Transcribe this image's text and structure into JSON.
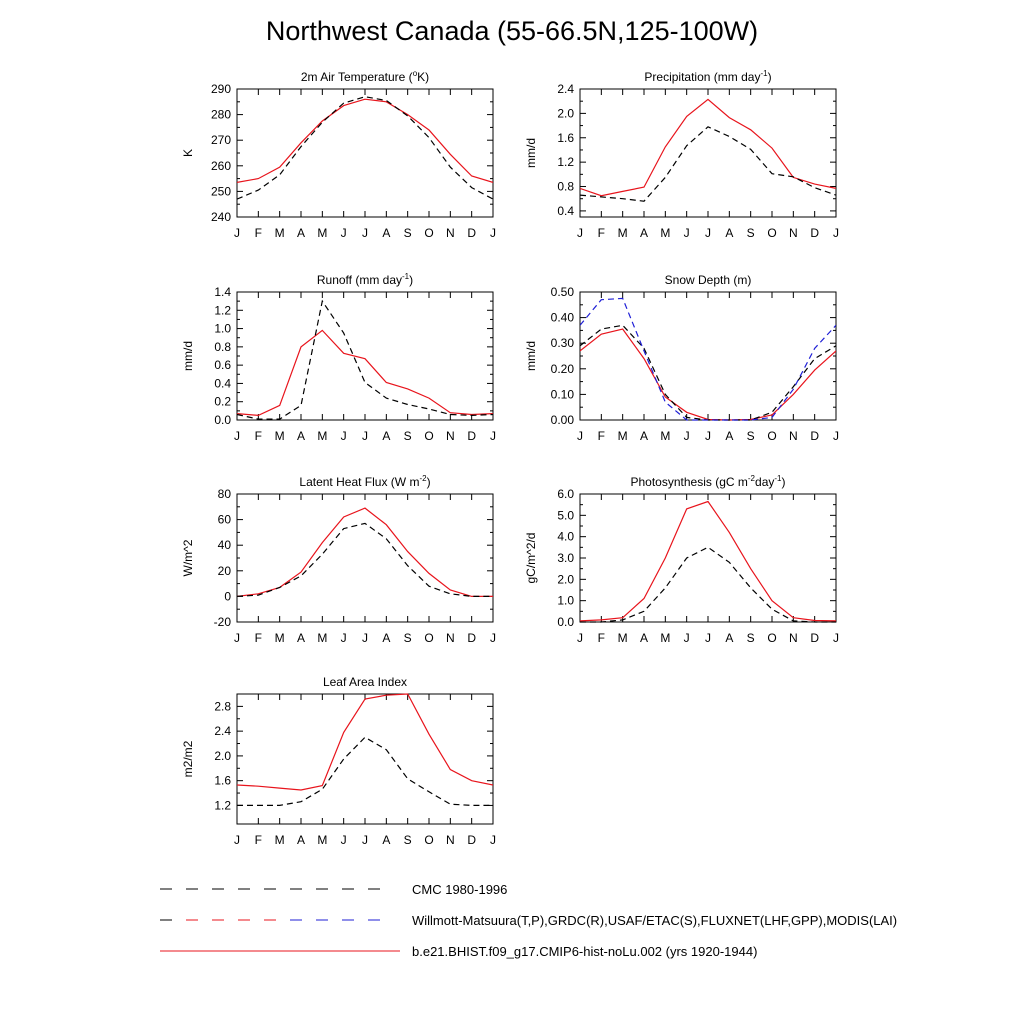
{
  "page": {
    "title": "Northwest Canada (55-66.5N,125-100W)"
  },
  "months": [
    "J",
    "F",
    "M",
    "A",
    "M",
    "J",
    "J",
    "A",
    "S",
    "O",
    "N",
    "D",
    "J"
  ],
  "colors": {
    "model": "#e8141c",
    "obs": "#000000",
    "obs_alt": "#1f1fd6"
  },
  "legend": [
    {
      "label": "CMC 1980-1996",
      "dash": "obs",
      "colors": [
        "#000000"
      ]
    },
    {
      "label": "Willmott-Matsuura(T,P),GRDC(R),USAF/ETAC(S),FLUXNET(LHF,GPP),MODIS(LAI)",
      "dash": "obs",
      "colors": [
        "#000000",
        "#e8141c",
        "#1f1fd6"
      ]
    },
    {
      "label": "b.e21.BHIST.f09_g17.CMIP6-hist-noLu.002 (yrs 1920-1944)",
      "dash": "solid",
      "colors": [
        "#e8141c"
      ]
    }
  ],
  "chart_data": [
    {
      "id": "temp",
      "type": "line",
      "title": "2m Air Temperature (",
      "title_sup": "o",
      "title_post": "K)",
      "ylabel": "K",
      "ylim": [
        240,
        290
      ],
      "yticks": [
        240,
        250,
        260,
        270,
        280,
        290
      ],
      "ytick_labels": [
        "240",
        "250",
        "260",
        "270",
        "280",
        "290"
      ],
      "xticklabels": [
        "J",
        "F",
        "M",
        "A",
        "M",
        "J",
        "J",
        "A",
        "S",
        "O",
        "N",
        "D",
        "J"
      ],
      "series": [
        {
          "style": "solid",
          "color": "#e8141c",
          "values": [
            253.5,
            255,
            259.5,
            269,
            277.5,
            283.5,
            286,
            285,
            280,
            274,
            264.5,
            256,
            253.5
          ]
        },
        {
          "style": "dash",
          "color": "#000000",
          "values": [
            247,
            250.5,
            256.5,
            267.5,
            277,
            284.5,
            287,
            285.5,
            279.5,
            271,
            259.5,
            251.5,
            247
          ]
        }
      ]
    },
    {
      "id": "precip",
      "type": "line",
      "title": "Precipitation (mm day",
      "title_sup": "-1",
      "title_post": ")",
      "ylabel": "mm/d",
      "ylim": [
        0.3,
        2.4
      ],
      "yticks": [
        0.4,
        0.8,
        1.2,
        1.6,
        2.0,
        2.4
      ],
      "ytick_labels": [
        "0.4",
        "0.8",
        "1.2",
        "1.6",
        "2.0",
        "2.4"
      ],
      "xticklabels": [
        "J",
        "F",
        "M",
        "A",
        "M",
        "J",
        "J",
        "A",
        "S",
        "O",
        "N",
        "D",
        "J"
      ],
      "series": [
        {
          "style": "solid",
          "color": "#e8141c",
          "values": [
            0.77,
            0.65,
            0.72,
            0.79,
            1.45,
            1.95,
            2.23,
            1.93,
            1.73,
            1.43,
            0.95,
            0.84,
            0.77
          ]
        },
        {
          "style": "dash",
          "color": "#000000",
          "values": [
            0.66,
            0.63,
            0.6,
            0.56,
            0.95,
            1.47,
            1.78,
            1.62,
            1.41,
            1.01,
            0.96,
            0.78,
            0.66
          ]
        }
      ]
    },
    {
      "id": "runoff",
      "type": "line",
      "title": "Runoff (mm day",
      "title_sup": "-1",
      "title_post": ")",
      "ylabel": "mm/d",
      "ylim": [
        0.0,
        1.4
      ],
      "yticks": [
        0.0,
        0.2,
        0.4,
        0.6,
        0.8,
        1.0,
        1.2,
        1.4
      ],
      "ytick_labels": [
        "0.0",
        "0.2",
        "0.4",
        "0.6",
        "0.8",
        "1.0",
        "1.2",
        "1.4"
      ],
      "xticklabels": [
        "J",
        "F",
        "M",
        "A",
        "M",
        "J",
        "J",
        "A",
        "S",
        "O",
        "N",
        "D",
        "J"
      ],
      "series": [
        {
          "style": "solid",
          "color": "#e8141c",
          "values": [
            0.07,
            0.05,
            0.16,
            0.8,
            0.98,
            0.73,
            0.67,
            0.41,
            0.34,
            0.24,
            0.08,
            0.06,
            0.07
          ]
        },
        {
          "style": "dash",
          "color": "#000000",
          "values": [
            0.06,
            0.01,
            0.01,
            0.16,
            1.3,
            0.95,
            0.41,
            0.24,
            0.17,
            0.12,
            0.06,
            0.05,
            0.06
          ]
        }
      ]
    },
    {
      "id": "snow",
      "type": "line",
      "title": "Snow Depth (m)",
      "title_sup": "",
      "title_post": "",
      "ylabel": "mm/d",
      "ylim": [
        0.0,
        0.5
      ],
      "yticks": [
        0.0,
        0.1,
        0.2,
        0.3,
        0.4,
        0.5
      ],
      "ytick_labels": [
        "0.00",
        "0.10",
        "0.20",
        "0.30",
        "0.40",
        "0.50"
      ],
      "xticklabels": [
        "J",
        "F",
        "M",
        "A",
        "M",
        "J",
        "J",
        "A",
        "S",
        "O",
        "N",
        "D",
        "J"
      ],
      "series": [
        {
          "style": "solid",
          "color": "#e8141c",
          "values": [
            0.27,
            0.335,
            0.355,
            0.24,
            0.09,
            0.03,
            0.002,
            0.0,
            0.002,
            0.02,
            0.1,
            0.195,
            0.27
          ]
        },
        {
          "style": "dash",
          "color": "#000000",
          "values": [
            0.29,
            0.355,
            0.37,
            0.28,
            0.1,
            0.01,
            0.0,
            0.0,
            0.0,
            0.03,
            0.13,
            0.24,
            0.29
          ]
        },
        {
          "style": "dash",
          "color": "#1f1fd6",
          "values": [
            0.37,
            0.47,
            0.475,
            0.27,
            0.07,
            0.0,
            0.0,
            0.0,
            0.0,
            0.01,
            0.12,
            0.28,
            0.37
          ]
        }
      ]
    },
    {
      "id": "lhf",
      "type": "line",
      "title": "Latent Heat Flux (W m",
      "title_sup": "-2",
      "title_post": ")",
      "ylabel": "W/m^2",
      "ylim": [
        -20,
        80
      ],
      "yticks": [
        -20,
        0,
        20,
        40,
        60,
        80
      ],
      "ytick_labels": [
        "-20",
        "0",
        "20",
        "40",
        "60",
        "80"
      ],
      "xticklabels": [
        "J",
        "F",
        "M",
        "A",
        "M",
        "J",
        "J",
        "A",
        "S",
        "O",
        "N",
        "D",
        "J"
      ],
      "series": [
        {
          "style": "solid",
          "color": "#e8141c",
          "values": [
            0,
            2,
            7,
            19,
            42,
            62,
            69,
            56,
            35,
            18,
            5,
            0,
            0
          ]
        },
        {
          "style": "dash",
          "color": "#000000",
          "values": [
            0,
            1,
            7,
            16,
            33,
            53,
            57,
            45,
            24,
            8,
            2,
            0,
            0
          ]
        }
      ]
    },
    {
      "id": "gpp",
      "type": "line",
      "title": "Photosynthesis (gC m",
      "title_sup": "-2",
      "title_post": "day",
      "title_sup2": "-1",
      "title_post2": ")",
      "ylabel": "gC/m^2/d",
      "ylim": [
        0.0,
        6.0
      ],
      "yticks": [
        0.0,
        1.0,
        2.0,
        3.0,
        4.0,
        5.0,
        6.0
      ],
      "ytick_labels": [
        "0.0",
        "1.0",
        "2.0",
        "3.0",
        "4.0",
        "5.0",
        "6.0"
      ],
      "xticklabels": [
        "J",
        "F",
        "M",
        "A",
        "M",
        "J",
        "J",
        "A",
        "S",
        "O",
        "N",
        "D",
        "J"
      ],
      "series": [
        {
          "style": "solid",
          "color": "#e8141c",
          "values": [
            0.05,
            0.1,
            0.2,
            1.1,
            3.0,
            5.3,
            5.65,
            4.2,
            2.5,
            1.0,
            0.2,
            0.07,
            0.05
          ]
        },
        {
          "style": "dash",
          "color": "#000000",
          "values": [
            0.0,
            0.0,
            0.1,
            0.5,
            1.6,
            3.0,
            3.5,
            2.8,
            1.6,
            0.6,
            0.05,
            0.0,
            0.0
          ]
        }
      ]
    },
    {
      "id": "lai",
      "type": "line",
      "title": "Leaf Area Index",
      "title_sup": "",
      "title_post": "",
      "ylabel": "m2/m2",
      "ylim": [
        0.9,
        3.0
      ],
      "yticks": [
        1.2,
        1.6,
        2.0,
        2.4,
        2.8
      ],
      "ytick_labels": [
        "1.2",
        "1.6",
        "2.0",
        "2.4",
        "2.8"
      ],
      "xticklabels": [
        "J",
        "F",
        "M",
        "A",
        "M",
        "J",
        "J",
        "A",
        "S",
        "O",
        "N",
        "D",
        "J"
      ],
      "series": [
        {
          "style": "solid",
          "color": "#e8141c",
          "values": [
            1.53,
            1.51,
            1.48,
            1.45,
            1.52,
            2.38,
            2.92,
            2.98,
            3.0,
            2.35,
            1.78,
            1.6,
            1.53
          ]
        },
        {
          "style": "dash",
          "color": "#000000",
          "values": [
            1.2,
            1.2,
            1.2,
            1.26,
            1.46,
            1.95,
            2.3,
            2.1,
            1.63,
            1.42,
            1.22,
            1.2,
            1.2
          ]
        }
      ]
    }
  ]
}
